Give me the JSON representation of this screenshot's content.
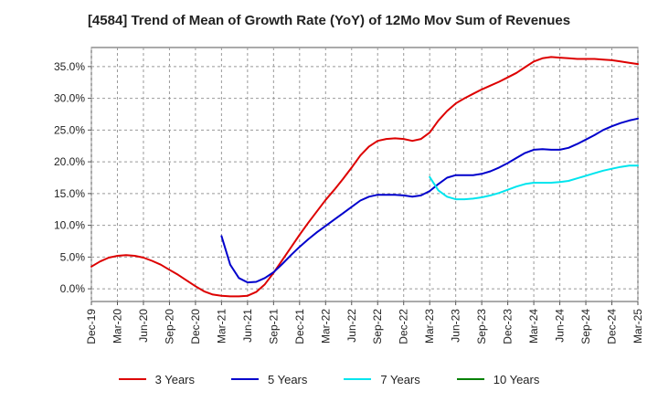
{
  "chart_data": {
    "type": "line",
    "title": "[4584]  Trend of Mean of Growth Rate (YoY) of 12Mo Mov Sum of Revenues",
    "xlabel": "",
    "ylabel": "",
    "x_tick_labels": [
      "Dec-19",
      "Mar-20",
      "Jun-20",
      "Sep-20",
      "Dec-20",
      "Mar-21",
      "Jun-21",
      "Sep-21",
      "Dec-21",
      "Mar-22",
      "Jun-22",
      "Sep-22",
      "Dec-22",
      "Mar-23",
      "Jun-23",
      "Sep-23",
      "Dec-23",
      "Mar-24",
      "Jun-24",
      "Sep-24",
      "Dec-24",
      "Mar-25"
    ],
    "y_tick_labels": [
      "0.0%",
      "5.0%",
      "10.0%",
      "15.0%",
      "20.0%",
      "25.0%",
      "30.0%",
      "35.0%"
    ],
    "y_ticks": [
      0,
      5,
      10,
      15,
      20,
      25,
      30,
      35
    ],
    "ylim": [
      -2,
      38
    ],
    "x_range_months": [
      0,
      63
    ],
    "grid": true,
    "legend_position": "bottom",
    "series": [
      {
        "name": "3 Years",
        "color": "#dd0000",
        "x": [
          0,
          1,
          2,
          3,
          4,
          5,
          6,
          7,
          8,
          9,
          10,
          11,
          12,
          13,
          14,
          15,
          16,
          17,
          18,
          19,
          20,
          21,
          22,
          23,
          24,
          25,
          26,
          27,
          28,
          29,
          30,
          31,
          32,
          33,
          34,
          35,
          36,
          37,
          38,
          39,
          40,
          41,
          42,
          43,
          44,
          45,
          46,
          47,
          48,
          49,
          50,
          51,
          52,
          53,
          54,
          55,
          56,
          57,
          58,
          59,
          60,
          61,
          62,
          63
        ],
        "values": [
          3.5,
          4.3,
          4.9,
          5.2,
          5.3,
          5.2,
          4.9,
          4.4,
          3.8,
          3.0,
          2.2,
          1.3,
          0.4,
          -0.4,
          -0.9,
          -1.1,
          -1.2,
          -1.2,
          -1.1,
          -0.5,
          0.7,
          2.5,
          4.5,
          6.5,
          8.5,
          10.4,
          12.2,
          14.0,
          15.6,
          17.3,
          19.1,
          21.0,
          22.4,
          23.3,
          23.6,
          23.7,
          23.6,
          23.3,
          23.6,
          24.6,
          26.5,
          28.0,
          29.2,
          30.0,
          30.7,
          31.4,
          32.0,
          32.6,
          33.3,
          34.0,
          34.9,
          35.8,
          36.3,
          36.5,
          36.4,
          36.3,
          36.2,
          36.2,
          36.2,
          36.1,
          36.0,
          35.8,
          35.6,
          35.4
        ]
      },
      {
        "name": "5 Years",
        "color": "#0000cc",
        "x": [
          15,
          16,
          17,
          18,
          19,
          20,
          21,
          22,
          23,
          24,
          25,
          26,
          27,
          28,
          29,
          30,
          31,
          32,
          33,
          34,
          35,
          36,
          37,
          38,
          39,
          40,
          41,
          42,
          43,
          44,
          45,
          46,
          47,
          48,
          49,
          50,
          51,
          52,
          53,
          54,
          55,
          56,
          57,
          58,
          59,
          60,
          61,
          62,
          63
        ],
        "values": [
          8.3,
          3.8,
          1.7,
          1.0,
          1.1,
          1.7,
          2.6,
          3.9,
          5.3,
          6.6,
          7.8,
          8.9,
          9.9,
          10.9,
          11.9,
          12.9,
          13.9,
          14.5,
          14.8,
          14.8,
          14.8,
          14.7,
          14.5,
          14.7,
          15.4,
          16.5,
          17.5,
          17.9,
          17.9,
          17.9,
          18.1,
          18.5,
          19.1,
          19.8,
          20.6,
          21.4,
          21.9,
          22.0,
          21.9,
          21.9,
          22.2,
          22.8,
          23.5,
          24.2,
          25.0,
          25.6,
          26.1,
          26.5,
          26.8
        ]
      },
      {
        "name": "7 Years",
        "color": "#00e5ee",
        "x": [
          39,
          40,
          41,
          42,
          43,
          44,
          45,
          46,
          47,
          48,
          49,
          50,
          51,
          52,
          53,
          54,
          55,
          56,
          57,
          58,
          59,
          60,
          61,
          62,
          63
        ],
        "values": [
          17.6,
          15.5,
          14.5,
          14.1,
          14.1,
          14.2,
          14.4,
          14.7,
          15.1,
          15.6,
          16.1,
          16.5,
          16.7,
          16.7,
          16.7,
          16.8,
          17.0,
          17.4,
          17.8,
          18.2,
          18.6,
          18.9,
          19.2,
          19.4,
          19.4
        ]
      },
      {
        "name": "10 Years",
        "color": "#008000",
        "x": [],
        "values": []
      }
    ]
  }
}
